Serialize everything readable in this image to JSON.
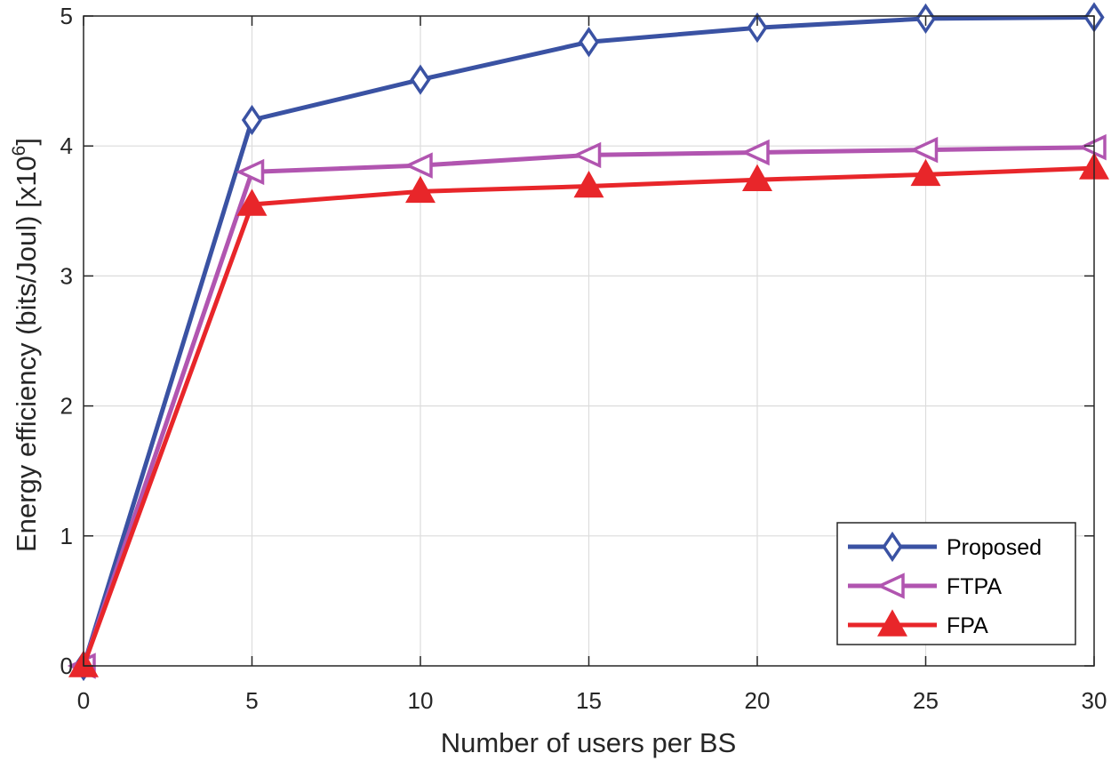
{
  "chart_data": {
    "type": "line",
    "title": "",
    "xlabel": "Number of users per BS",
    "ylabel_main": "Energy efficiency (bits/Joul) [x10",
    "ylabel_exp": "6",
    "ylabel_close": "]",
    "x": [
      0,
      5,
      10,
      15,
      20,
      25,
      30
    ],
    "xlim": [
      0,
      30
    ],
    "ylim": [
      0,
      5
    ],
    "xticks": [
      "0",
      "5",
      "10",
      "15",
      "20",
      "25",
      "30"
    ],
    "yticks": [
      "0",
      "1",
      "2",
      "3",
      "4",
      "5"
    ],
    "grid": true,
    "legend_position": "bottom-right",
    "series": [
      {
        "name": "Proposed",
        "color": "#3a52a3",
        "marker": "diamond",
        "values": [
          0,
          4.2,
          4.51,
          4.8,
          4.91,
          4.98,
          4.99
        ]
      },
      {
        "name": "FTPA",
        "color": "#b155b0",
        "marker": "triangle-left",
        "values": [
          0,
          3.8,
          3.85,
          3.93,
          3.95,
          3.97,
          3.99
        ]
      },
      {
        "name": "FPA",
        "color": "#e8262a",
        "marker": "triangle-up",
        "values": [
          0,
          3.55,
          3.65,
          3.69,
          3.74,
          3.78,
          3.83
        ]
      }
    ]
  }
}
